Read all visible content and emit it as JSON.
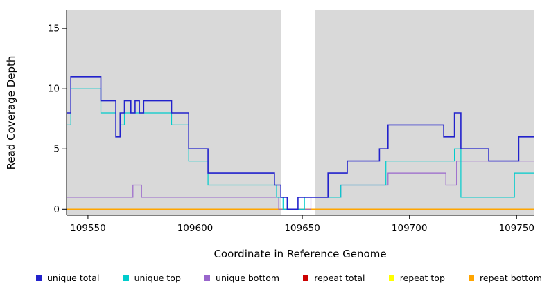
{
  "chart_data": {
    "type": "line",
    "subtype": "step-coverage",
    "title": "",
    "xlabel": "Coordinate in Reference Genome",
    "ylabel": "Read Coverage Depth",
    "xlim": [
      109540,
      109758
    ],
    "ylim": [
      -0.5,
      16.5
    ],
    "x_ticks": [
      109550,
      109600,
      109650,
      109700,
      109750
    ],
    "y_ticks": [
      0,
      5,
      10,
      15
    ],
    "grid": false,
    "plot_bg": "#D9D9D9",
    "masked_region": {
      "x_start": 109640,
      "x_end": 109656,
      "color": "#FFFFFF"
    },
    "series": [
      {
        "name": "repeat total",
        "color": "#CC0000",
        "width": 1.2,
        "points": [
          [
            109540,
            0
          ]
        ]
      },
      {
        "name": "repeat top",
        "color": "#FFFF00",
        "width": 1.2,
        "points": [
          [
            109540,
            0
          ]
        ]
      },
      {
        "name": "repeat bottom",
        "color": "#FFA500",
        "width": 1.5,
        "points": [
          [
            109540,
            0
          ]
        ]
      },
      {
        "name": "unique bottom",
        "color": "#9966CC",
        "width": 1.2,
        "points": [
          [
            109540,
            1
          ],
          [
            109571,
            2
          ],
          [
            109575,
            1
          ],
          [
            109639,
            0
          ],
          [
            109654,
            1
          ],
          [
            109668,
            2
          ],
          [
            109690,
            3
          ],
          [
            109717,
            2
          ],
          [
            109722,
            4
          ]
        ]
      },
      {
        "name": "unique top",
        "color": "#00CCCC",
        "width": 1.2,
        "points": [
          [
            109540,
            7
          ],
          [
            109542,
            10
          ],
          [
            109556,
            8
          ],
          [
            109563,
            6
          ],
          [
            109565,
            7
          ],
          [
            109567,
            8
          ],
          [
            109589,
            7
          ],
          [
            109597,
            4
          ],
          [
            109606,
            2
          ],
          [
            109638,
            1
          ],
          [
            109641,
            0
          ],
          [
            109651,
            1
          ],
          [
            109668,
            2
          ],
          [
            109689,
            4
          ],
          [
            109721,
            5
          ],
          [
            109724,
            1
          ],
          [
            109749,
            3
          ]
        ]
      },
      {
        "name": "unique total",
        "color": "#2222CC",
        "width": 1.6,
        "points": [
          [
            109540,
            8
          ],
          [
            109542,
            11
          ],
          [
            109556,
            9
          ],
          [
            109563,
            6
          ],
          [
            109565,
            8
          ],
          [
            109567,
            9
          ],
          [
            109570,
            8
          ],
          [
            109572,
            9
          ],
          [
            109574,
            8
          ],
          [
            109576,
            9
          ],
          [
            109589,
            8
          ],
          [
            109597,
            5
          ],
          [
            109606,
            3
          ],
          [
            109637,
            2
          ],
          [
            109640,
            1
          ],
          [
            109643,
            0
          ],
          [
            109648,
            1
          ],
          [
            109662,
            3
          ],
          [
            109671,
            4
          ],
          [
            109686,
            5
          ],
          [
            109690,
            7
          ],
          [
            109716,
            6
          ],
          [
            109721,
            8
          ],
          [
            109724,
            5
          ],
          [
            109737,
            4
          ],
          [
            109751,
            6
          ]
        ]
      }
    ],
    "legend": [
      {
        "label": "unique total",
        "color": "#2222CC"
      },
      {
        "label": "unique top",
        "color": "#00CCCC"
      },
      {
        "label": "unique bottom",
        "color": "#9966CC"
      },
      {
        "label": "repeat total",
        "color": "#CC0000"
      },
      {
        "label": "repeat top",
        "color": "#FFFF00"
      },
      {
        "label": "repeat bottom",
        "color": "#FFA500"
      }
    ],
    "legend_position": "bottom"
  }
}
